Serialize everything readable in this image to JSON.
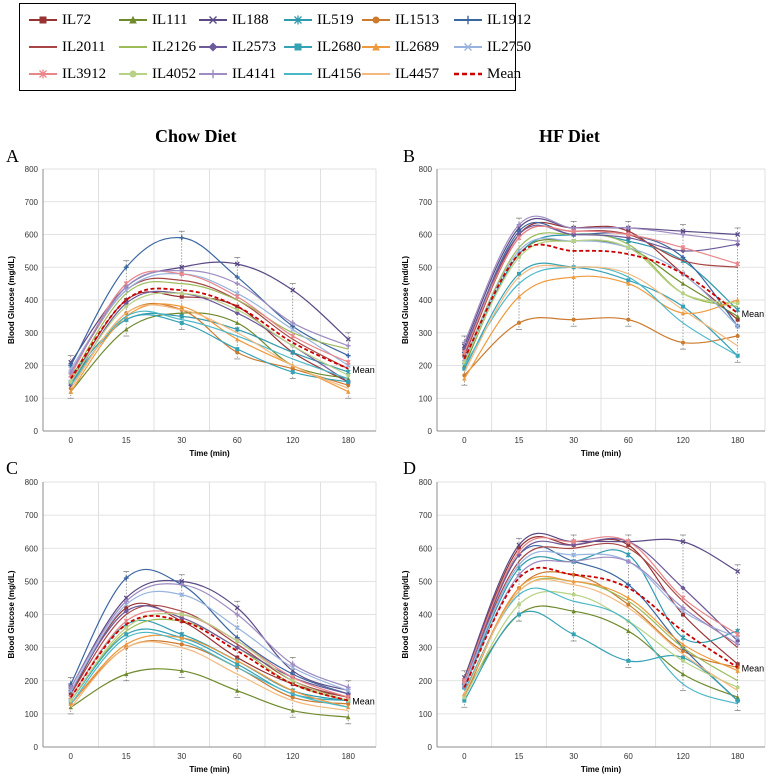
{
  "legend": [
    {
      "name": "IL72",
      "color": "#993333",
      "marker": "square"
    },
    {
      "name": "IL111",
      "color": "#6f8a2c",
      "marker": "triangle"
    },
    {
      "name": "IL188",
      "color": "#5b4a86",
      "marker": "x"
    },
    {
      "name": "IL519",
      "color": "#2f9aae",
      "marker": "star"
    },
    {
      "name": "IL1513",
      "color": "#cc7a2e",
      "marker": "circle"
    },
    {
      "name": "IL1912",
      "color": "#3b66a0",
      "marker": "plus"
    },
    {
      "name": "IL2011",
      "color": "#a84646",
      "marker": "none"
    },
    {
      "name": "IL2126",
      "color": "#9cbb59",
      "marker": "none"
    },
    {
      "name": "IL2573",
      "color": "#6d5a9a",
      "marker": "diamond"
    },
    {
      "name": "IL2680",
      "color": "#36a2b6",
      "marker": "square"
    },
    {
      "name": "IL2689",
      "color": "#f09a3e",
      "marker": "triangle"
    },
    {
      "name": "IL2750",
      "color": "#98b4de",
      "marker": "x"
    },
    {
      "name": "IL3912",
      "color": "#e8868a",
      "marker": "star"
    },
    {
      "name": "IL4052",
      "color": "#b8d285",
      "marker": "circle"
    },
    {
      "name": "IL4141",
      "color": "#9e8cc2",
      "marker": "plus"
    },
    {
      "name": "IL4156",
      "color": "#4bb8c8",
      "marker": "none"
    },
    {
      "name": "IL4457",
      "color": "#f4b97e",
      "marker": "none"
    },
    {
      "name": "Mean",
      "color": "#cc0000",
      "marker": "dashed"
    }
  ],
  "diet_titles": {
    "chow": "Chow Diet",
    "hf": "HF Diet"
  },
  "chart_data": [
    {
      "type": "line",
      "panel": "A",
      "xlabel": "Time (min)",
      "ylabel": "Blood Glucose (mg/dL)",
      "categories": [
        "0",
        "15",
        "30",
        "60",
        "120",
        "180"
      ],
      "ylim": [
        0,
        800
      ],
      "yticks": [
        "0",
        "100",
        "200",
        "300",
        "400",
        "500",
        "600",
        "700",
        "800"
      ],
      "annotation": "Mean",
      "series": [
        {
          "name": "IL72",
          "values": [
            150,
            400,
            410,
            380,
            240,
            150
          ]
        },
        {
          "name": "IL111",
          "values": [
            120,
            310,
            360,
            330,
            200,
            160
          ]
        },
        {
          "name": "IL188",
          "values": [
            210,
            440,
            500,
            510,
            430,
            280
          ]
        },
        {
          "name": "IL519",
          "values": [
            170,
            340,
            350,
            310,
            240,
            180
          ]
        },
        {
          "name": "IL1513",
          "values": [
            130,
            360,
            370,
            240,
            190,
            140
          ]
        },
        {
          "name": "IL1912",
          "values": [
            200,
            500,
            590,
            470,
            320,
            230
          ]
        },
        {
          "name": "IL2011",
          "values": [
            180,
            430,
            460,
            400,
            280,
            190
          ]
        },
        {
          "name": "IL2126",
          "values": [
            160,
            420,
            450,
            400,
            300,
            250
          ]
        },
        {
          "name": "IL2573",
          "values": [
            140,
            390,
            420,
            360,
            260,
            150
          ]
        },
        {
          "name": "IL2680",
          "values": [
            150,
            340,
            330,
            250,
            180,
            150
          ]
        },
        {
          "name": "IL2689",
          "values": [
            120,
            350,
            380,
            280,
            200,
            120
          ]
        },
        {
          "name": "IL2750",
          "values": [
            190,
            430,
            480,
            420,
            310,
            200
          ]
        },
        {
          "name": "IL3912",
          "values": [
            170,
            450,
            480,
            410,
            290,
            210
          ]
        },
        {
          "name": "IL4052",
          "values": [
            150,
            380,
            420,
            370,
            260,
            170
          ]
        },
        {
          "name": "IL4141",
          "values": [
            180,
            440,
            490,
            450,
            330,
            260
          ]
        },
        {
          "name": "IL4156",
          "values": [
            140,
            350,
            340,
            290,
            220,
            160
          ]
        },
        {
          "name": "IL4457",
          "values": [
            130,
            360,
            370,
            300,
            200,
            130
          ]
        },
        {
          "name": "Mean",
          "values": [
            160,
            400,
            430,
            380,
            270,
            190
          ]
        }
      ]
    },
    {
      "type": "line",
      "panel": "B",
      "xlabel": "Time (min)",
      "ylabel": "Blood Glucose (md/dL)",
      "categories": [
        "0",
        "15",
        "30",
        "60",
        "120",
        "180"
      ],
      "ylim": [
        0,
        800
      ],
      "yticks": [
        "0",
        "100",
        "200",
        "300",
        "400",
        "500",
        "600",
        "700",
        "800"
      ],
      "annotation": "Mean",
      "series": [
        {
          "name": "IL72",
          "values": [
            230,
            600,
            620,
            610,
            480,
            340
          ]
        },
        {
          "name": "IL111",
          "values": [
            200,
            540,
            580,
            560,
            450,
            350
          ]
        },
        {
          "name": "IL188",
          "values": [
            260,
            620,
            620,
            620,
            610,
            600
          ]
        },
        {
          "name": "IL519",
          "values": [
            210,
            540,
            600,
            580,
            520,
            370
          ]
        },
        {
          "name": "IL1513",
          "values": [
            170,
            330,
            340,
            340,
            270,
            290
          ]
        },
        {
          "name": "IL1912",
          "values": [
            240,
            610,
            600,
            600,
            530,
            320
          ]
        },
        {
          "name": "IL2011",
          "values": [
            230,
            590,
            610,
            600,
            520,
            500
          ]
        },
        {
          "name": "IL2126",
          "values": [
            220,
            560,
            600,
            570,
            420,
            380
          ]
        },
        {
          "name": "IL2573",
          "values": [
            250,
            600,
            600,
            590,
            550,
            570
          ]
        },
        {
          "name": "IL2680",
          "values": [
            190,
            480,
            500,
            460,
            380,
            230
          ]
        },
        {
          "name": "IL2689",
          "values": [
            160,
            410,
            470,
            450,
            360,
            400
          ]
        },
        {
          "name": "IL2750",
          "values": [
            220,
            550,
            580,
            560,
            480,
            320
          ]
        },
        {
          "name": "IL3912",
          "values": [
            240,
            590,
            610,
            600,
            560,
            510
          ]
        },
        {
          "name": "IL4052",
          "values": [
            210,
            530,
            580,
            560,
            420,
            390
          ]
        },
        {
          "name": "IL4141",
          "values": [
            270,
            630,
            620,
            620,
            600,
            580
          ]
        },
        {
          "name": "IL4156",
          "values": [
            200,
            450,
            500,
            470,
            330,
            230
          ]
        },
        {
          "name": "IL4457",
          "values": [
            180,
            470,
            500,
            480,
            370,
            260
          ]
        },
        {
          "name": "Mean",
          "values": [
            220,
            540,
            550,
            540,
            480,
            360
          ]
        }
      ]
    },
    {
      "type": "line",
      "panel": "C",
      "xlabel": "Time (min)",
      "ylabel": "Blood Glucose (mg/dL)",
      "categories": [
        "0",
        "15",
        "30",
        "60",
        "120",
        "180"
      ],
      "ylim": [
        0,
        800
      ],
      "yticks": [
        "0",
        "100",
        "200",
        "300",
        "400",
        "500",
        "600",
        "700",
        "800"
      ],
      "annotation": "Mean",
      "series": [
        {
          "name": "IL72",
          "values": [
            160,
            420,
            380,
            270,
            190,
            150
          ]
        },
        {
          "name": "IL111",
          "values": [
            120,
            220,
            230,
            170,
            110,
            90
          ]
        },
        {
          "name": "IL188",
          "values": [
            180,
            450,
            500,
            420,
            230,
            170
          ]
        },
        {
          "name": "IL519",
          "values": [
            150,
            370,
            340,
            260,
            170,
            140
          ]
        },
        {
          "name": "IL1513",
          "values": [
            130,
            300,
            310,
            240,
            150,
            130
          ]
        },
        {
          "name": "IL1912",
          "values": [
            190,
            510,
            490,
            330,
            220,
            160
          ]
        },
        {
          "name": "IL2011",
          "values": [
            160,
            400,
            410,
            310,
            200,
            150
          ]
        },
        {
          "name": "IL2126",
          "values": [
            140,
            350,
            380,
            300,
            190,
            140
          ]
        },
        {
          "name": "IL2573",
          "values": [
            170,
            410,
            390,
            300,
            210,
            160
          ]
        },
        {
          "name": "IL2680",
          "values": [
            140,
            340,
            330,
            250,
            160,
            140
          ]
        },
        {
          "name": "IL2689",
          "values": [
            130,
            310,
            330,
            260,
            170,
            120
          ]
        },
        {
          "name": "IL2750",
          "values": [
            170,
            430,
            460,
            360,
            240,
            170
          ]
        },
        {
          "name": "IL3912",
          "values": [
            150,
            380,
            400,
            320,
            210,
            150
          ]
        },
        {
          "name": "IL4052",
          "values": [
            140,
            360,
            400,
            320,
            200,
            140
          ]
        },
        {
          "name": "IL4141",
          "values": [
            180,
            440,
            490,
            400,
            250,
            180
          ]
        },
        {
          "name": "IL4156",
          "values": [
            130,
            330,
            320,
            240,
            160,
            120
          ]
        },
        {
          "name": "IL4457",
          "values": [
            120,
            300,
            300,
            220,
            140,
            110
          ]
        },
        {
          "name": "Mean",
          "values": [
            150,
            370,
            380,
            290,
            190,
            140
          ]
        }
      ]
    },
    {
      "type": "line",
      "panel": "D",
      "xlabel": "Time (min)",
      "ylabel": "Blood Glucose (mg/dL)",
      "categories": [
        "0",
        "15",
        "30",
        "60",
        "120",
        "180"
      ],
      "ylim": [
        0,
        800
      ],
      "yticks": [
        "0",
        "100",
        "200",
        "300",
        "400",
        "500",
        "600",
        "700",
        "800"
      ],
      "annotation": "Mean",
      "series": [
        {
          "name": "IL72",
          "values": [
            200,
            600,
            610,
            610,
            400,
            250
          ]
        },
        {
          "name": "IL111",
          "values": [
            160,
            400,
            410,
            350,
            220,
            150
          ]
        },
        {
          "name": "IL188",
          "values": [
            210,
            610,
            620,
            620,
            620,
            530
          ]
        },
        {
          "name": "IL519",
          "values": [
            180,
            540,
            560,
            580,
            330,
            350
          ]
        },
        {
          "name": "IL1513",
          "values": [
            150,
            480,
            520,
            430,
            290,
            240
          ]
        },
        {
          "name": "IL1912",
          "values": [
            190,
            580,
            560,
            490,
            300,
            140
          ]
        },
        {
          "name": "IL2011",
          "values": [
            200,
            560,
            600,
            600,
            440,
            300
          ]
        },
        {
          "name": "IL2126",
          "values": [
            170,
            470,
            500,
            440,
            300,
            200
          ]
        },
        {
          "name": "IL2573",
          "values": [
            190,
            580,
            610,
            620,
            480,
            320
          ]
        },
        {
          "name": "IL2680",
          "values": [
            140,
            400,
            340,
            260,
            270,
            140
          ]
        },
        {
          "name": "IL2689",
          "values": [
            160,
            480,
            500,
            450,
            310,
            230
          ]
        },
        {
          "name": "IL2750",
          "values": [
            190,
            550,
            580,
            560,
            410,
            330
          ]
        },
        {
          "name": "IL3912",
          "values": [
            200,
            590,
            620,
            620,
            450,
            340
          ]
        },
        {
          "name": "IL4052",
          "values": [
            150,
            430,
            460,
            380,
            260,
            180
          ]
        },
        {
          "name": "IL4141",
          "values": [
            180,
            520,
            560,
            560,
            420,
            310
          ]
        },
        {
          "name": "IL4156",
          "values": [
            170,
            460,
            440,
            380,
            190,
            130
          ]
        },
        {
          "name": "IL4457",
          "values": [
            160,
            470,
            490,
            420,
            280,
            170
          ]
        },
        {
          "name": "Mean",
          "values": [
            180,
            510,
            520,
            480,
            350,
            240
          ]
        }
      ]
    }
  ]
}
